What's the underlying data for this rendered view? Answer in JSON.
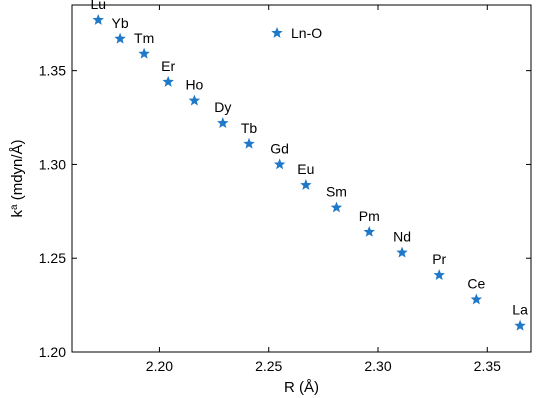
{
  "chart_data": {
    "type": "scatter",
    "xlabel": "R (Å)",
    "ylabel_base": "k",
    "ylabel_sup": "a",
    "ylabel_rest": " (mdyn/Å)",
    "xlim": [
      2.16,
      2.37
    ],
    "ylim": [
      1.2,
      1.385
    ],
    "xticks": [
      2.2,
      2.25,
      2.3,
      2.35
    ],
    "xtick_labels": [
      "2.20",
      "2.25",
      "2.30",
      "2.35"
    ],
    "yticks": [
      1.2,
      1.25,
      1.3,
      1.35
    ],
    "ytick_labels": [
      "1.20",
      "1.25",
      "1.30",
      "1.35"
    ],
    "marker": "star",
    "color": "#1f78c8",
    "grid": false,
    "series": [
      {
        "name": "Ln-O",
        "legend_position": "top-center",
        "points": [
          {
            "label": "Lu",
            "x": 2.172,
            "y": 1.377
          },
          {
            "label": "Yb",
            "x": 2.182,
            "y": 1.367
          },
          {
            "label": "Tm",
            "x": 2.193,
            "y": 1.359
          },
          {
            "label": "Er",
            "x": 2.204,
            "y": 1.344
          },
          {
            "label": "Ho",
            "x": 2.216,
            "y": 1.334
          },
          {
            "label": "Dy",
            "x": 2.229,
            "y": 1.322
          },
          {
            "label": "Tb",
            "x": 2.241,
            "y": 1.311
          },
          {
            "label": "Gd",
            "x": 2.255,
            "y": 1.3
          },
          {
            "label": "Eu",
            "x": 2.267,
            "y": 1.289
          },
          {
            "label": "Sm",
            "x": 2.281,
            "y": 1.277
          },
          {
            "label": "Pm",
            "x": 2.296,
            "y": 1.264
          },
          {
            "label": "Nd",
            "x": 2.311,
            "y": 1.253
          },
          {
            "label": "Pr",
            "x": 2.328,
            "y": 1.241
          },
          {
            "label": "Ce",
            "x": 2.345,
            "y": 1.228
          },
          {
            "label": "La",
            "x": 2.365,
            "y": 1.214
          }
        ]
      }
    ]
  }
}
